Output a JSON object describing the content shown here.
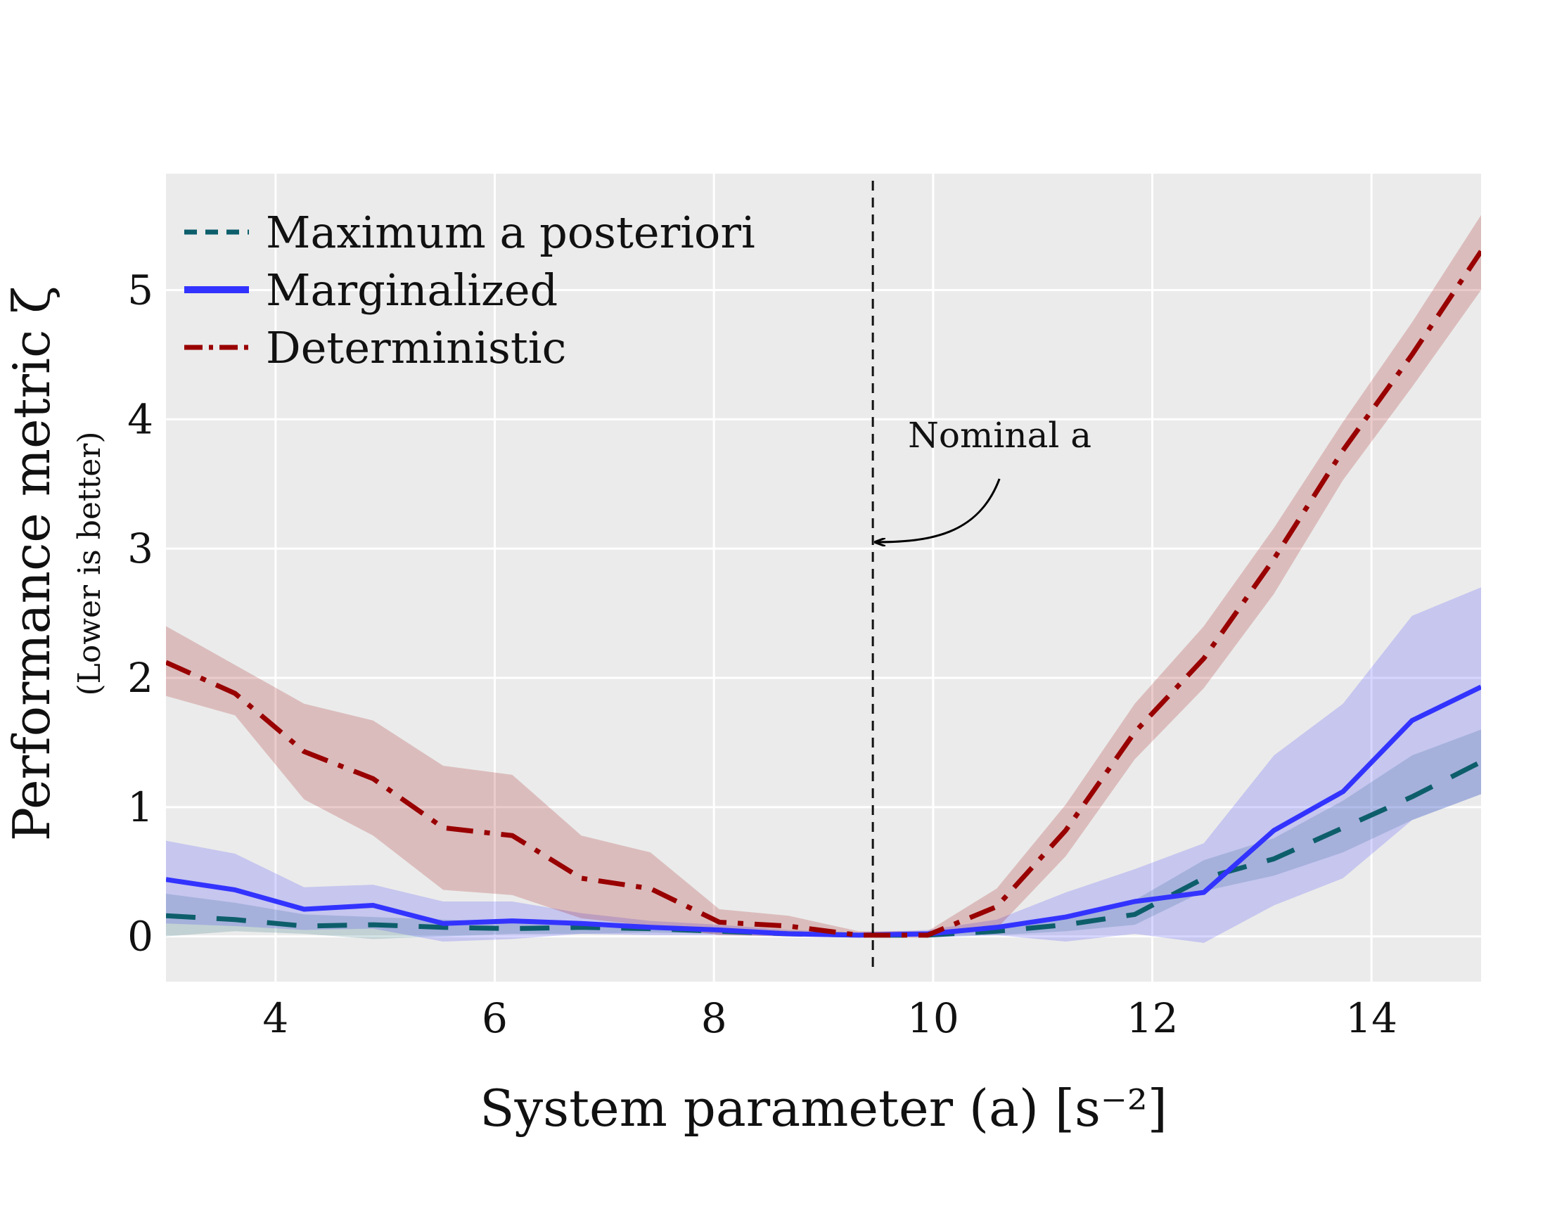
{
  "chart_data": {
    "type": "line",
    "xlabel": "System parameter (a) [s⁻²]",
    "ylabel": "Performance metric ζ",
    "ylabel_sub": "(Lower is better)",
    "xlim": [
      3,
      15
    ],
    "ylim": [
      -0.35,
      5.9
    ],
    "x_ticks": [
      "4",
      "6",
      "8",
      "10",
      "12",
      "14"
    ],
    "y_ticks": [
      "0",
      "1",
      "2",
      "3",
      "4",
      "5"
    ],
    "grid": true,
    "legend_position": "top-left",
    "background": "#ebebeb",
    "annotation": {
      "text": "Nominal a",
      "vline_x": 9.45,
      "arrow_y": 3.05
    },
    "x": [
      3.0,
      3.63,
      4.26,
      4.89,
      5.53,
      6.16,
      6.79,
      7.42,
      8.05,
      8.68,
      9.32,
      9.95,
      10.58,
      11.21,
      11.84,
      12.47,
      13.11,
      13.74,
      14.37,
      15.0
    ],
    "series": [
      {
        "name": "Maximum a posteriori",
        "color": "#0d5e6b",
        "style": "dashed",
        "values": [
          0.16,
          0.13,
          0.08,
          0.09,
          0.07,
          0.06,
          0.07,
          0.06,
          0.04,
          0.02,
          0.01,
          0.01,
          0.04,
          0.09,
          0.17,
          0.45,
          0.6,
          0.84,
          1.08,
          1.35
        ],
        "lower": [
          0.0,
          0.04,
          0.02,
          -0.02,
          0.0,
          0.02,
          0.02,
          0.03,
          0.02,
          0.0,
          0.0,
          0.0,
          0.01,
          0.04,
          0.09,
          0.35,
          0.47,
          0.65,
          0.9,
          1.1
        ],
        "upper": [
          0.33,
          0.26,
          0.17,
          0.15,
          0.13,
          0.11,
          0.11,
          0.09,
          0.06,
          0.04,
          0.02,
          0.03,
          0.07,
          0.15,
          0.28,
          0.59,
          0.76,
          1.05,
          1.4,
          1.6
        ]
      },
      {
        "name": "Marginalized",
        "color": "#3333ff",
        "style": "solid",
        "values": [
          0.44,
          0.36,
          0.21,
          0.24,
          0.1,
          0.12,
          0.1,
          0.07,
          0.05,
          0.02,
          0.01,
          0.02,
          0.07,
          0.15,
          0.27,
          0.34,
          0.82,
          1.12,
          1.67,
          1.93
        ],
        "lower": [
          0.1,
          0.08,
          0.05,
          0.06,
          -0.04,
          -0.02,
          0.02,
          0.01,
          0.01,
          0.0,
          0.0,
          -0.01,
          0.01,
          -0.04,
          0.02,
          -0.05,
          0.24,
          0.45,
          0.9,
          1.1
        ],
        "upper": [
          0.74,
          0.64,
          0.38,
          0.4,
          0.27,
          0.27,
          0.18,
          0.12,
          0.09,
          0.05,
          0.03,
          0.05,
          0.13,
          0.34,
          0.52,
          0.72,
          1.4,
          1.8,
          2.48,
          2.7
        ]
      },
      {
        "name": "Deterministic",
        "color": "#990000",
        "style": "dashdot",
        "values": [
          2.12,
          1.88,
          1.43,
          1.22,
          0.84,
          0.78,
          0.45,
          0.37,
          0.11,
          0.08,
          0.01,
          0.01,
          0.23,
          0.82,
          1.58,
          2.15,
          2.92,
          3.76,
          4.5,
          5.3
        ],
        "lower": [
          1.86,
          1.71,
          1.06,
          0.78,
          0.36,
          0.32,
          0.14,
          0.08,
          0.01,
          0.0,
          -0.01,
          -0.01,
          0.06,
          0.62,
          1.37,
          1.92,
          2.65,
          3.53,
          4.25,
          5.0
        ],
        "upper": [
          2.4,
          2.1,
          1.8,
          1.67,
          1.32,
          1.25,
          0.78,
          0.65,
          0.21,
          0.16,
          0.04,
          0.04,
          0.37,
          1.02,
          1.8,
          2.4,
          3.16,
          3.98,
          4.75,
          5.58
        ]
      }
    ]
  }
}
